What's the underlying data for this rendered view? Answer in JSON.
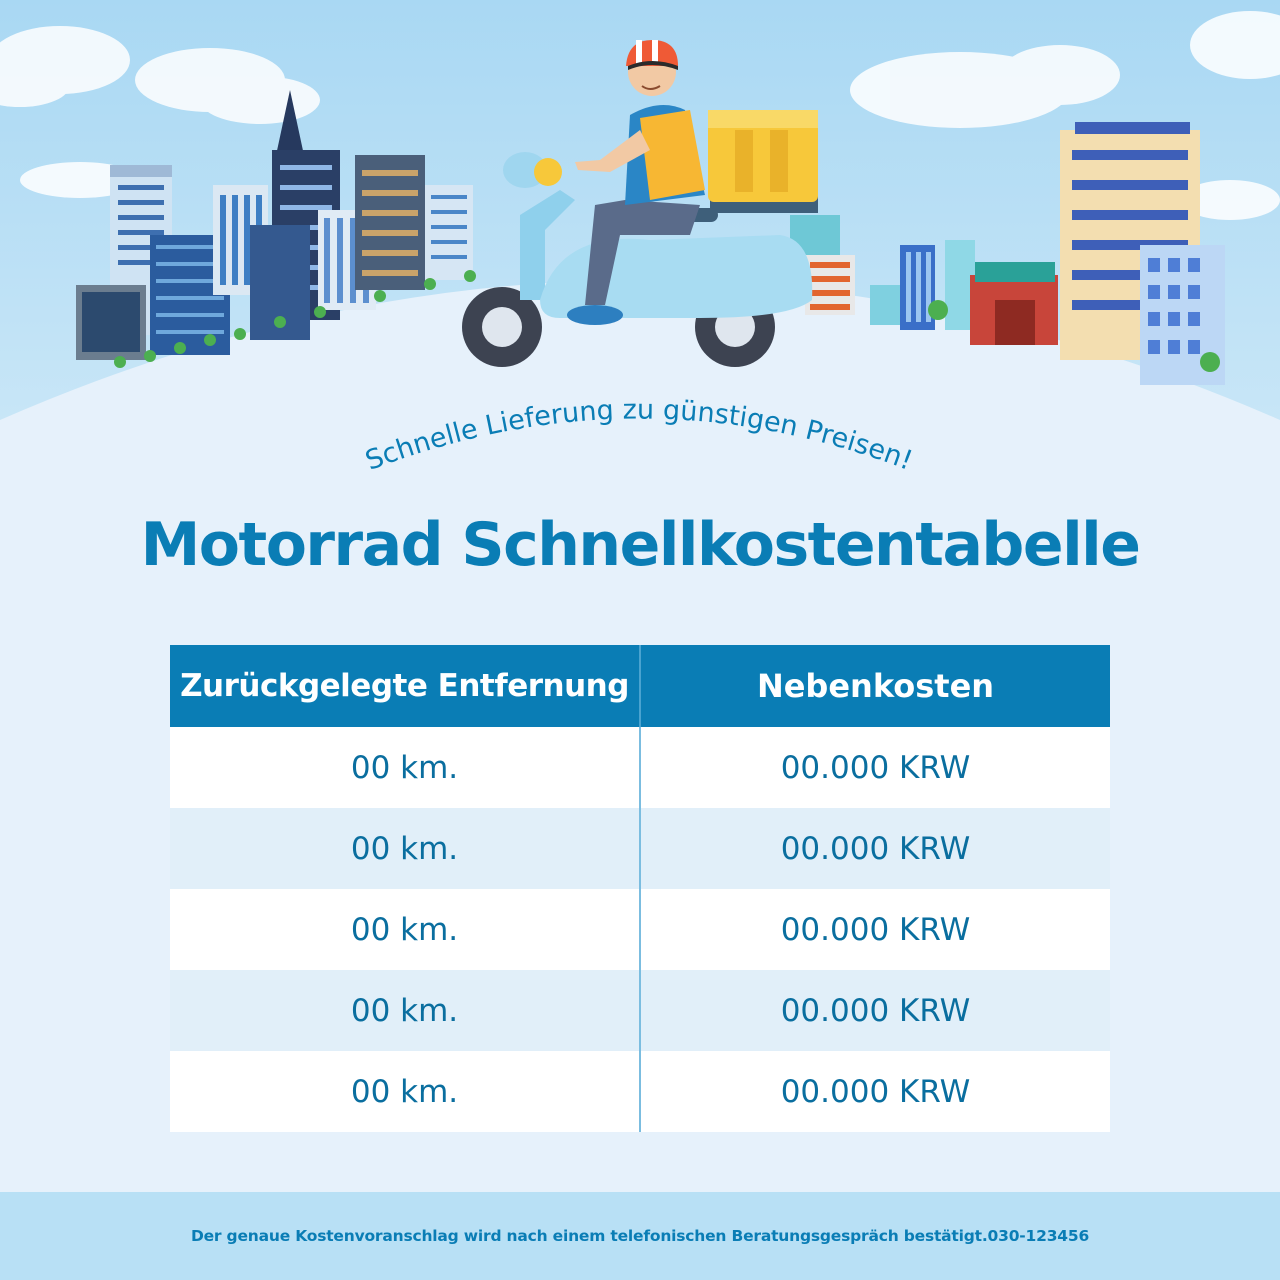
{
  "tagline": "Schnelle Lieferung zu günstigen Preisen!",
  "title": "Motorrad Schnellkostentabelle",
  "table": {
    "headers": [
      "Zurückgelegte Entfernung",
      "Nebenkosten"
    ],
    "rows": [
      [
        "00 km.",
        "00.000 KRW"
      ],
      [
        "00 km.",
        "00.000 KRW"
      ],
      [
        "00 km.",
        "00.000 KRW"
      ],
      [
        "00 km.",
        "00.000 KRW"
      ],
      [
        "00 km.",
        "00.000 KRW"
      ]
    ]
  },
  "footer": "Der genaue Kostenvoranschlag wird nach einem telefonischen Beratungsgespräch bestätigt.030-123456",
  "colors": {
    "primary": "#0a7db5",
    "sky": "#b7e0f6",
    "ground": "#e6f1fb",
    "box": "#f7c83a",
    "scooter": "#9fd6ef"
  }
}
